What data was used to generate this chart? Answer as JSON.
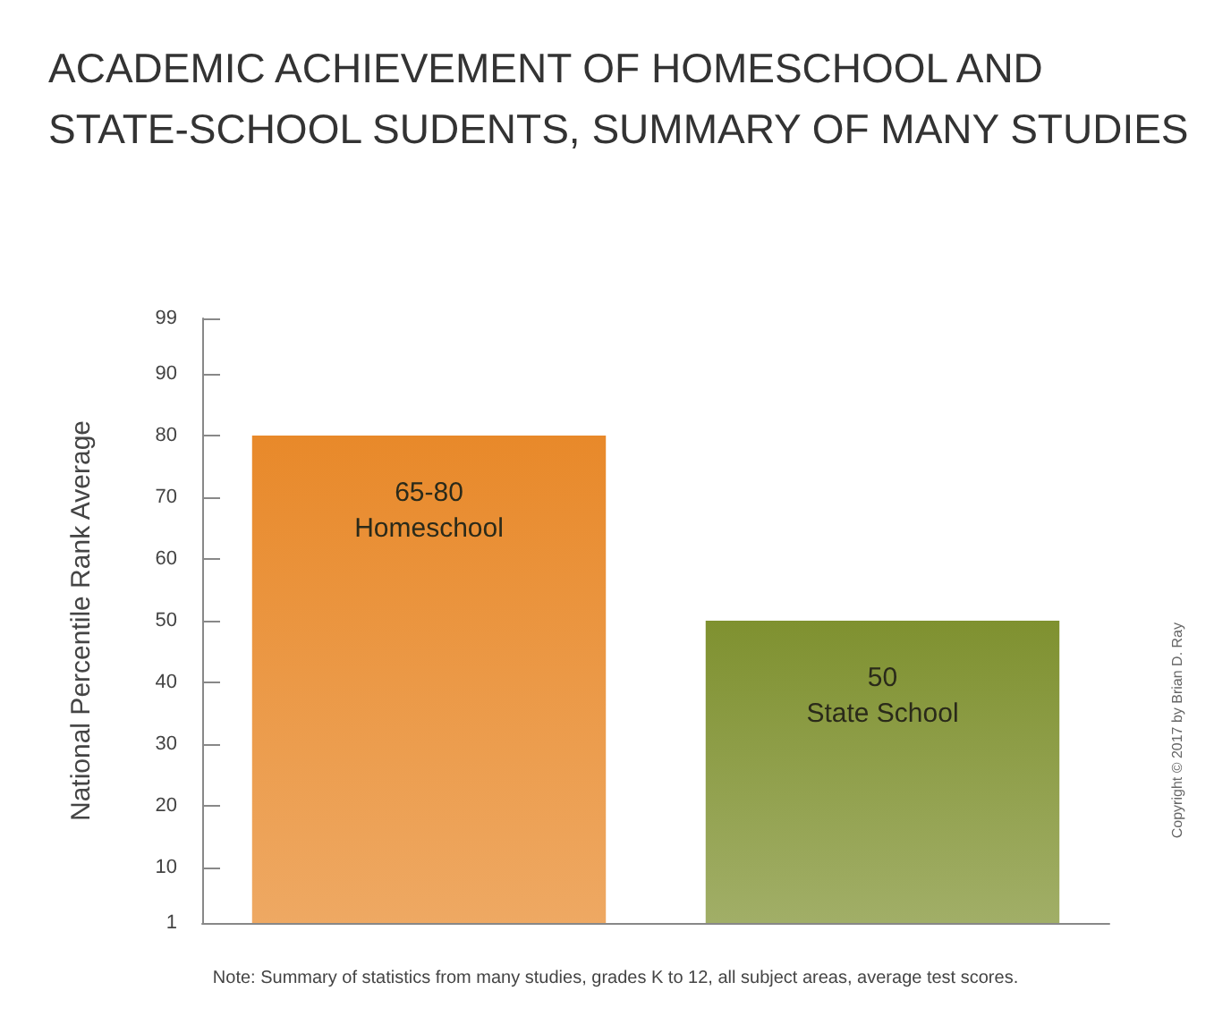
{
  "chart_data": {
    "type": "bar",
    "title": "ACADEMIC ACHIEVEMENT OF HOMESCHOOL AND\nSTATE-SCHOOL SUDENTS, SUMMARY OF MANY STUDIES",
    "ylabel": "National Percentile Rank Average",
    "categories": [
      "Homeschool",
      "State School"
    ],
    "values": [
      80,
      50
    ],
    "value_labels": [
      "65-80",
      "50"
    ],
    "colors": [
      "#e8892a",
      "#7f9130"
    ],
    "ylim": [
      1,
      99
    ],
    "yticks": [
      1,
      10,
      20,
      30,
      40,
      50,
      60,
      70,
      80,
      90,
      99
    ],
    "tick_labels": "y",
    "annotations": [
      "Note: Summary of statistics from many studies, grades K to 12, all subject areas, average test scores.",
      "Copyright © 2017 by Brian D. Ray"
    ]
  }
}
